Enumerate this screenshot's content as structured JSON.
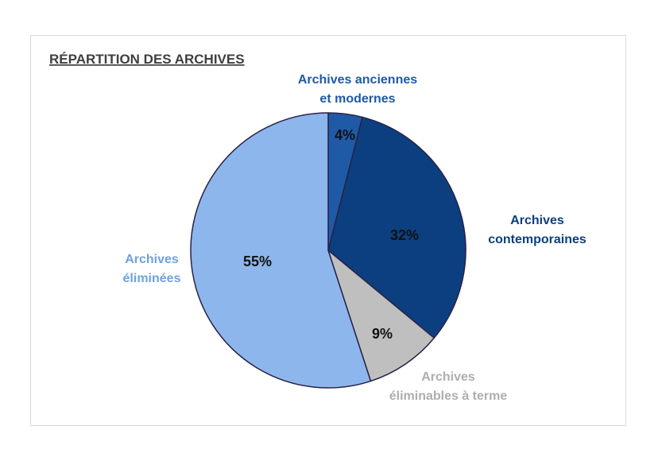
{
  "chart_data": {
    "type": "pie",
    "title": "RÉPARTITION DES ARCHIVES",
    "slices": [
      {
        "label_lines": [
          "Archives anciennes",
          "et modernes"
        ],
        "value": 4,
        "value_label": "4%",
        "color": "#1f5aa6",
        "label_color": "#1f5aa6"
      },
      {
        "label_lines": [
          "Archives",
          "contemporaines"
        ],
        "value": 32,
        "value_label": "32%",
        "color": "#0b3f7f",
        "label_color": "#0b3f7f"
      },
      {
        "label_lines": [
          "Archives",
          "éliminables à terme"
        ],
        "value": 9,
        "value_label": "9%",
        "color": "#bfbfbf",
        "label_color": "#aeaeae"
      },
      {
        "label_lines": [
          "Archives",
          "éliminées"
        ],
        "value": 55,
        "value_label": "55%",
        "color": "#8db6ec",
        "label_color": "#6fa3dc"
      }
    ],
    "start": "12 o'clock",
    "direction": "clockwise",
    "outline_color": "#2a2248"
  }
}
